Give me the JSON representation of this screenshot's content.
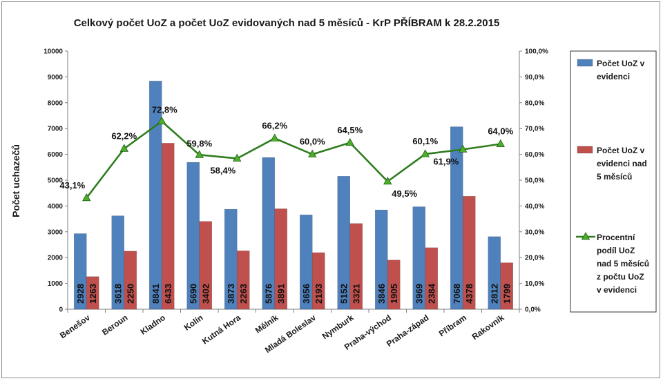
{
  "chart_data": {
    "type": "bar",
    "title": "Celkový počet UoZ a počet UoZ evidovaných nad 5 měsíců - KrP PŘÍBRAM k 28.2.2015",
    "ylabel": "Počet uchazečů",
    "ylim": [
      0,
      10000
    ],
    "y_ticks": [
      "0",
      "1000",
      "2000",
      "3000",
      "4000",
      "5000",
      "6000",
      "7000",
      "8000",
      "9000",
      "10000"
    ],
    "y2lim": [
      0,
      100
    ],
    "y2_ticks": [
      "0,0%",
      "10,0%",
      "20,0%",
      "30,0%",
      "40,0%",
      "50,0%",
      "60,0%",
      "70,0%",
      "80,0%",
      "90,0%",
      "100,0%"
    ],
    "grid": false,
    "legend_position": "right",
    "categories": [
      "Benešov",
      "Beroun",
      "Kladno",
      "Kolín",
      "Kutná Hora",
      "Mělník",
      "Mladá Boleslav",
      "Nymburk",
      "Praha-východ",
      "Praha-západ",
      "Příbram",
      "Rakovník"
    ],
    "series": [
      {
        "name": "Počet UoZ v evidenci",
        "legend_lines": [
          "Počet UoZ v",
          "evidenci"
        ],
        "type": "bar",
        "color": "#4f81bd",
        "values": [
          2928,
          3618,
          8841,
          5690,
          3873,
          5876,
          3656,
          5152,
          3846,
          3969,
          7068,
          2812
        ],
        "labels": [
          "2928",
          "3618",
          "8841",
          "5690",
          "3873",
          "5876",
          "3656",
          "5152",
          "3846",
          "3969",
          "7068",
          "2812"
        ]
      },
      {
        "name": "Počet UoZ v evidenci nad 5 měsíců",
        "legend_lines": [
          "Počet UoZ v",
          "evidenci  nad",
          "5 měsíců"
        ],
        "type": "bar",
        "color": "#c0504d",
        "values": [
          1263,
          2250,
          6433,
          3402,
          2263,
          3891,
          2193,
          3321,
          1905,
          2384,
          4378,
          1799
        ],
        "labels": [
          "1263",
          "2250",
          "6433",
          "3402",
          "2263",
          "3891",
          "2193",
          "3321",
          "1905",
          "2384",
          "4378",
          "1799"
        ]
      },
      {
        "name": "Procentní podíl UoZ nad 5 měsíců z počtu UoZ v evidenci",
        "legend_lines": [
          "Procentní",
          "podíl UoZ",
          "nad 5 měsíců",
          "z počtu UoZ",
          "v evidenci"
        ],
        "type": "line",
        "axis": "right",
        "color": "#2e7d1e",
        "marker_color": "#4caf2a",
        "values": [
          43.1,
          62.2,
          72.8,
          59.8,
          58.4,
          66.2,
          60.0,
          64.5,
          49.5,
          60.1,
          61.9,
          64.0
        ],
        "labels": [
          "43,1%",
          "62,2%",
          "72,8%",
          "59,8%",
          "58,4%",
          "66,2%",
          "60,0%",
          "64,5%",
          "49,5%",
          "60,1%",
          "61,9%",
          "64,0%"
        ]
      }
    ]
  }
}
